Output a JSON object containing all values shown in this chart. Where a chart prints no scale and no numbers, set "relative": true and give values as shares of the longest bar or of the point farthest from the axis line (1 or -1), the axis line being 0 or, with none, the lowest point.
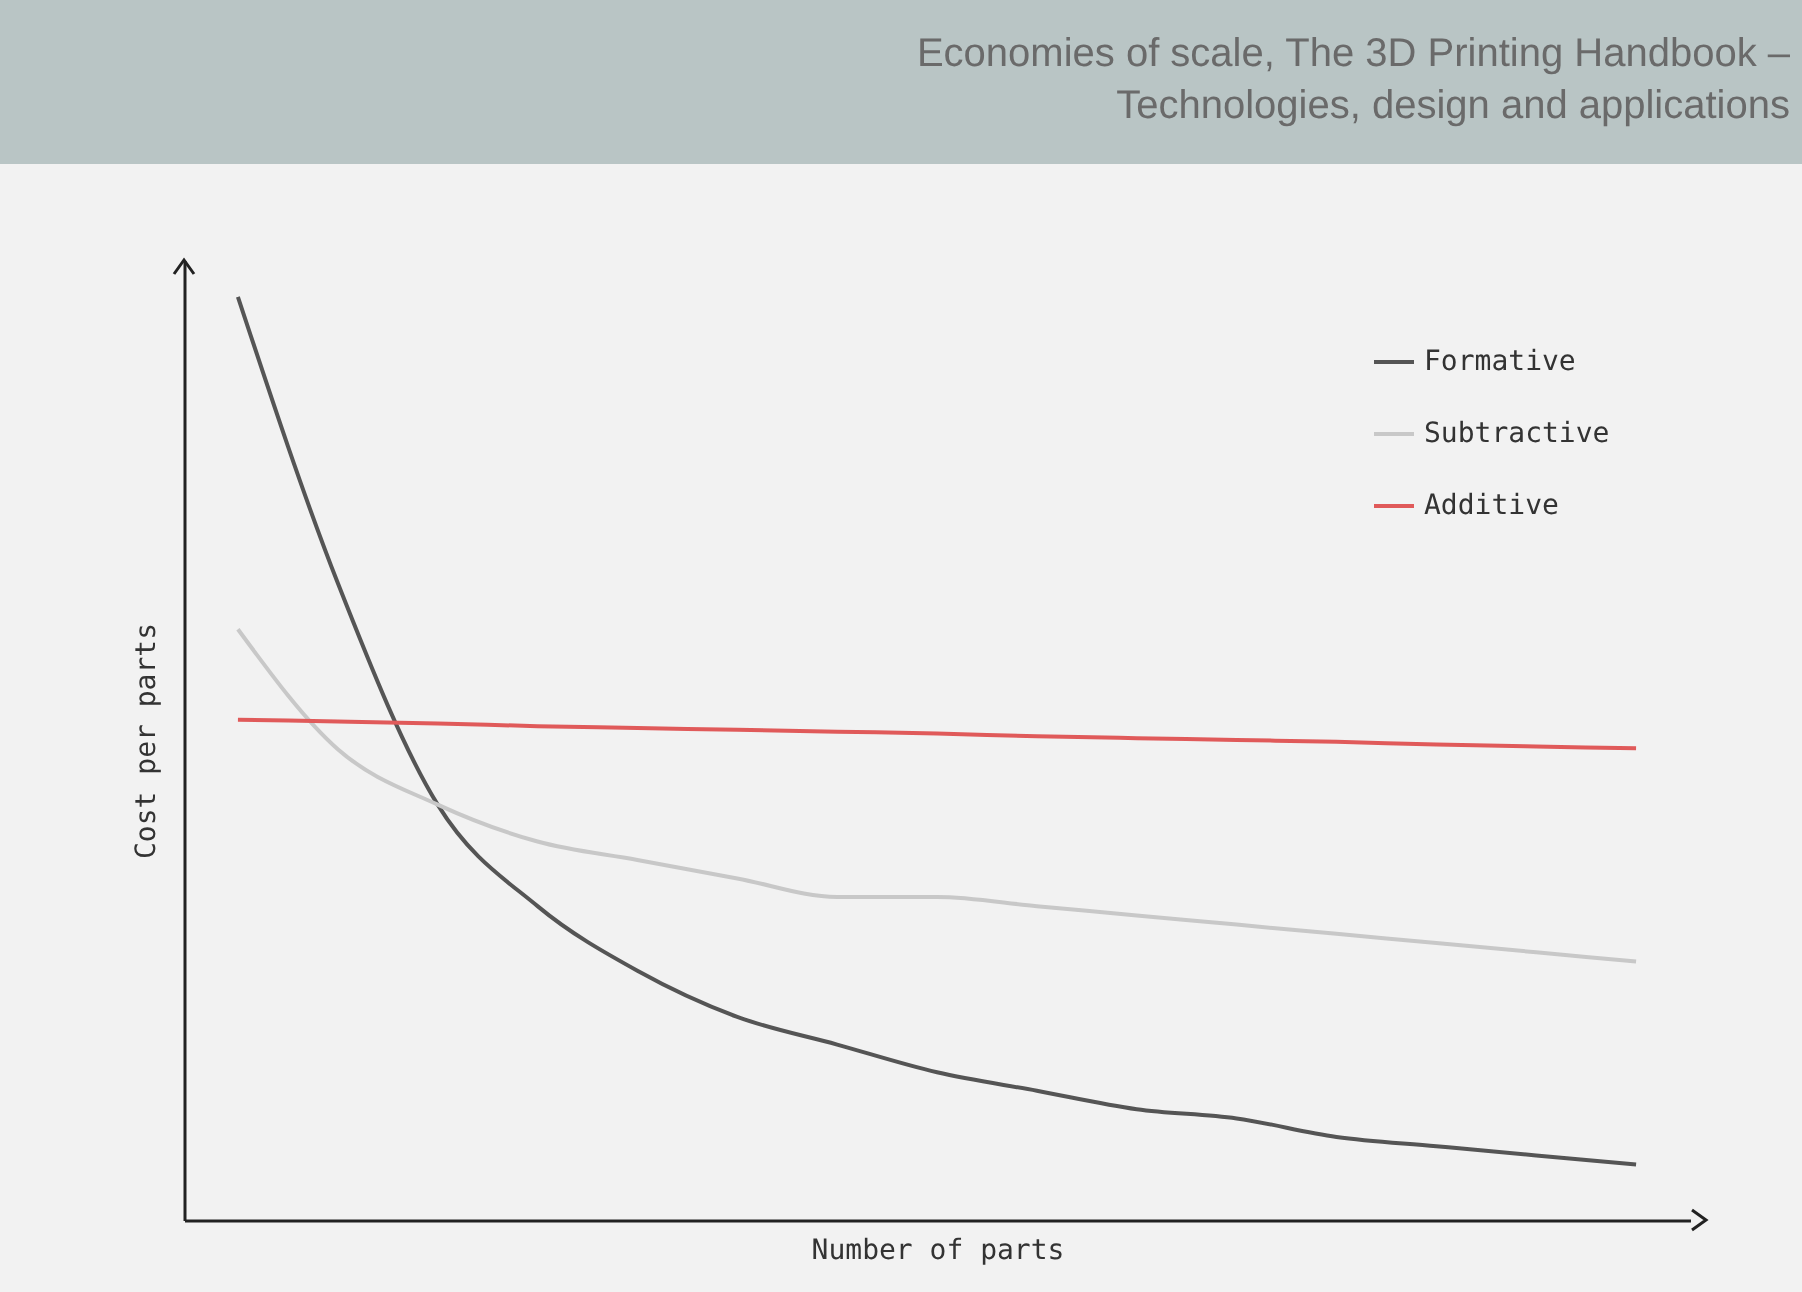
{
  "chart_data": {
    "type": "line",
    "title": "Economies of scale, The 3D Printing Handbook – Technologies, design and applications",
    "xlabel": "Number of parts",
    "ylabel": "Cost per parts",
    "relative": true,
    "legend": "top right",
    "categories": [
      null,
      null,
      null,
      null,
      null,
      null,
      null,
      null,
      null,
      null,
      null,
      null,
      null,
      null,
      null
    ],
    "series": [
      {
        "name": "Formative",
        "color": "#555555",
        "values": [
          1,
          0.69,
          0.45,
          0.34,
          0.27,
          0.22,
          0.19,
          0.16,
          0.14,
          0.12,
          0.11,
          0.09,
          0.08,
          0.07,
          0.06
        ]
      },
      {
        "name": "Subtractive",
        "color": "#c8c8c8",
        "values": [
          0.64,
          0.51,
          0.45,
          0.41,
          0.39,
          0.37,
          0.35,
          0.35,
          0.34,
          0.33,
          0.32,
          0.31,
          0.3,
          0.29,
          0.28
        ]
      },
      {
        "name": "Additive",
        "color": "#e05a5a",
        "values": [
          0.542,
          0.54,
          0.538,
          0.535,
          0.533,
          0.531,
          0.529,
          0.527,
          0.524,
          0.522,
          0.52,
          0.518,
          0.515,
          0.513,
          0.511
        ]
      }
    ]
  }
}
